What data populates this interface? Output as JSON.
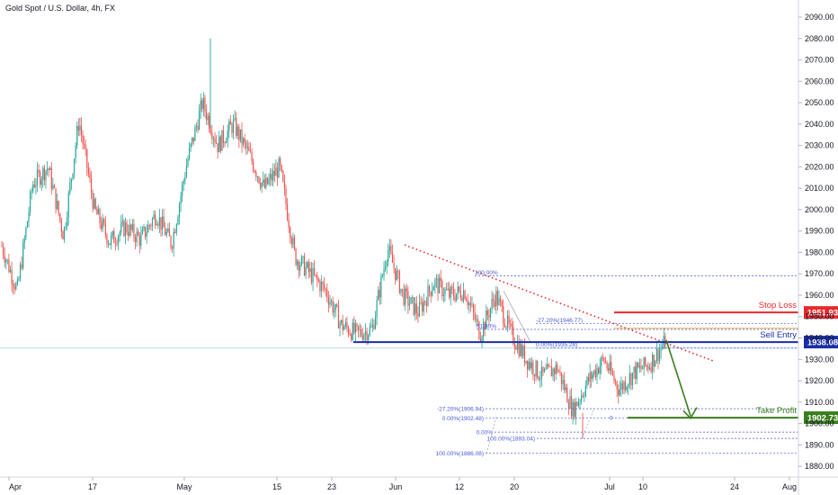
{
  "header": {
    "title": "Gold Spot / U.S. Dollar, 4h, FX"
  },
  "colors": {
    "up": "#26a69a",
    "down": "#ef5350",
    "stop_loss": "#e8282c",
    "sell_entry": "#1a2ea8",
    "take_profit": "#3a7d1e",
    "arrow": "#3a7d1e",
    "trendline": "#e8282c",
    "fib": "#4a5ad8",
    "orange_level": "#e6a23c"
  },
  "levels": {
    "stop_loss": {
      "label": "Stop Loss",
      "value": 1951.93,
      "badge": "1951.93"
    },
    "sell_entry": {
      "label": "Sell Entry",
      "value": 1938.08,
      "badge": "1938.08"
    },
    "take_profit": {
      "label": "Take Profit",
      "value": 1902.73,
      "badge": "1902.73"
    }
  },
  "fib_upper": [
    {
      "label": "100.00%",
      "value": 1969.0
    },
    {
      "label": "-27.20%(1946.77)",
      "value": 1946.77
    },
    {
      "label": "61.80%",
      "value": 1944.0
    },
    {
      "label": "0.00%(1935.28)",
      "value": 1935.28
    }
  ],
  "fib_lower": [
    {
      "label": "-27.20%(1906.94)",
      "value": 1906.94
    },
    {
      "label": "0.00%(1902.48)",
      "value": 1902.48
    },
    {
      "label": "0.00%",
      "value": 1896.0
    },
    {
      "label": "100.00%(1893.04)",
      "value": 1893.04
    },
    {
      "label": "100.00%(1886.08)",
      "value": 1886.08
    }
  ],
  "fib_misc_label": "0",
  "chart_data": {
    "type": "candlestick",
    "title": "Gold Spot / U.S. Dollar, 4h, FX",
    "y_ticks": [
      1880,
      1890,
      1900,
      1910,
      1920,
      1930,
      1940,
      1950,
      1960,
      1970,
      1980,
      1990,
      2000,
      2010,
      2020,
      2030,
      2040,
      2050,
      2060,
      2070,
      2080,
      2090
    ],
    "ylim": [
      1875,
      2098
    ],
    "x_ticks": [
      "Apr",
      "17",
      "May",
      "15",
      "23",
      "Jun",
      "12",
      "20",
      "Jul",
      "10",
      "24",
      "Aug"
    ],
    "close_path": [
      [
        "Apr",
        1983
      ],
      [
        "Apr 3",
        1962
      ],
      [
        "Apr 5",
        2012
      ],
      [
        "Apr 7",
        2020
      ],
      [
        "Apr 11",
        1988
      ],
      [
        "Apr 13",
        2042
      ],
      [
        "Apr 15",
        2000
      ],
      [
        "Apr 19",
        1985
      ],
      [
        "Apr 21",
        1992
      ],
      [
        "Apr 24",
        1986
      ],
      [
        "Apr 26",
        1998
      ],
      [
        "Apr 28",
        1984
      ],
      [
        "May",
        2022
      ],
      [
        "May 3",
        2050
      ],
      [
        "May 5",
        2030
      ],
      [
        "May 8",
        2040
      ],
      [
        "May 10",
        2026
      ],
      [
        "May 12",
        2010
      ],
      [
        "May 15",
        2020
      ],
      [
        "May 17",
        1978
      ],
      [
        "May 19",
        1970
      ],
      [
        "May 22",
        1962
      ],
      [
        "May 24",
        1946
      ],
      [
        "May 26",
        1942
      ],
      [
        "May 29",
        1944
      ],
      [
        "May 31",
        1982
      ],
      [
        "Jun",
        1960
      ],
      [
        "Jun 5",
        1952
      ],
      [
        "Jun 7",
        1966
      ],
      [
        "Jun 9",
        1960
      ],
      [
        "Jun 12",
        1962
      ],
      [
        "Jun 14",
        1942
      ],
      [
        "Jun 16",
        1960
      ],
      [
        "Jun 19",
        1942
      ],
      [
        "Jun 21",
        1930
      ],
      [
        "Jun 23",
        1922
      ],
      [
        "Jun 26",
        1926
      ],
      [
        "Jun 28",
        1906
      ],
      [
        "Jun 30",
        1920
      ],
      [
        "Jul 3",
        1930
      ],
      [
        "Jul 5",
        1916
      ],
      [
        "Jul 7",
        1924
      ],
      [
        "Jul 10",
        1928
      ],
      [
        "Jul 12",
        1938
      ]
    ],
    "candles_approx": 470
  }
}
